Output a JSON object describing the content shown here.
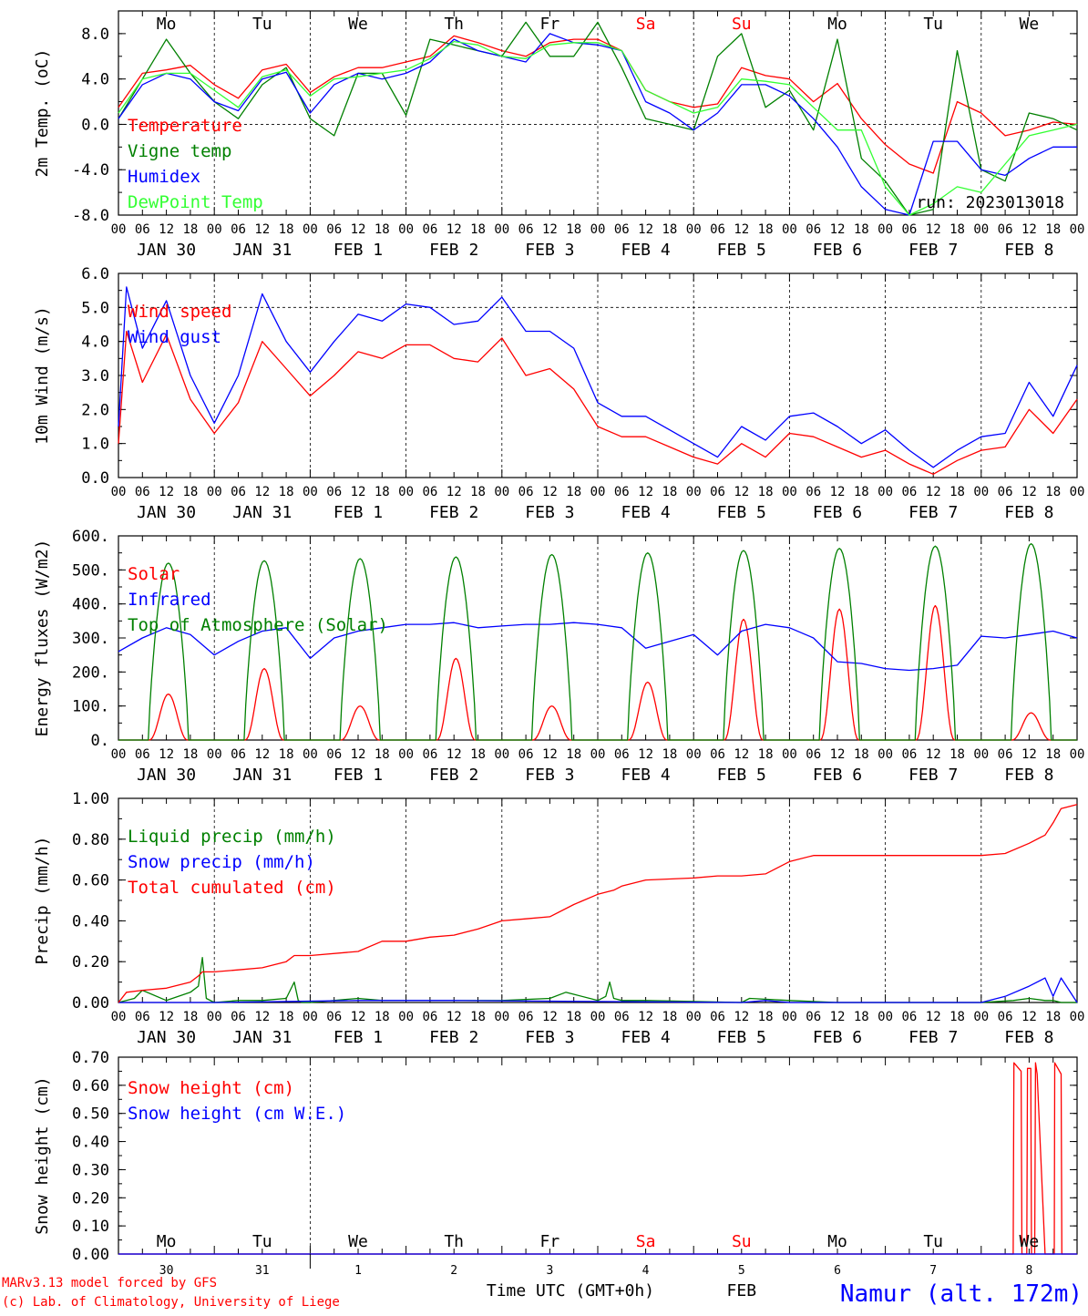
{
  "run_label": "run: 2023013018",
  "days_top": [
    {
      "label": "Mo",
      "color": "#000000"
    },
    {
      "label": "Tu",
      "color": "#000000"
    },
    {
      "label": "We",
      "color": "#000000"
    },
    {
      "label": "Th",
      "color": "#000000"
    },
    {
      "label": "Fr",
      "color": "#000000"
    },
    {
      "label": "Sa",
      "color": "#ff0000"
    },
    {
      "label": "Su",
      "color": "#ff0000"
    },
    {
      "label": "Mo",
      "color": "#000000"
    },
    {
      "label": "Tu",
      "color": "#000000"
    },
    {
      "label": "We",
      "color": "#000000"
    }
  ],
  "hour_ticks": [
    "00",
    "06",
    "12",
    "18"
  ],
  "hour_end": "00",
  "date_labels": [
    "JAN 30",
    "JAN 31",
    "FEB  1",
    "FEB  2",
    "FEB  3",
    "FEB  4",
    "FEB  5",
    "FEB  6",
    "FEB  7",
    "FEB  8"
  ],
  "bottom_day_numbers": [
    "30",
    "31",
    "1",
    "2",
    "3",
    "4",
    "5",
    "6",
    "7",
    "8"
  ],
  "xlabel": "Time UTC (GMT+0h)",
  "month_label": "FEB",
  "station_label": "Namur (alt. 172m)",
  "credit_line1": "MARv3.13 model forced by GFS",
  "credit_line2": "(c) Lab. of Climatology, University of Liege",
  "chart_data": [
    {
      "type": "line",
      "ylabel": "2m Temp. (oC)",
      "ylim": [
        -8,
        10
      ],
      "yticks": [
        "-8.0",
        "-4.0",
        "0.0",
        "4.0",
        "8.0"
      ],
      "ytick_values": [
        -8,
        -4,
        0,
        4,
        8
      ],
      "ref_line": 0,
      "x_unit": "hours since JAN 30 00 UTC",
      "series": [
        {
          "name": "Temperature",
          "color": "#ff0000",
          "x": [
            0,
            6,
            12,
            18,
            24,
            30,
            36,
            42,
            48,
            54,
            60,
            66,
            72,
            78,
            84,
            90,
            96,
            102,
            108,
            114,
            120,
            126,
            132,
            138,
            144,
            150,
            156,
            162,
            168,
            174,
            180,
            186,
            192,
            198,
            204,
            210,
            216,
            222,
            228,
            234,
            240
          ],
          "y": [
            1.5,
            4.5,
            4.8,
            5.2,
            3.5,
            2.3,
            4.8,
            5.3,
            2.8,
            4.2,
            5.0,
            5.0,
            5.5,
            6.0,
            7.8,
            7.2,
            6.5,
            6.0,
            7.2,
            7.5,
            7.5,
            6.5,
            3.0,
            2.0,
            1.5,
            1.8,
            5.0,
            4.3,
            4.0,
            2.0,
            3.6,
            0.5,
            -1.8,
            -3.5,
            -4.3,
            2.0,
            1.0,
            -1.0,
            -0.5,
            0.2,
            0.0
          ]
        },
        {
          "name": "Vigne temp",
          "color": "#008000",
          "x": [
            0,
            6,
            12,
            18,
            24,
            30,
            36,
            42,
            48,
            54,
            60,
            66,
            72,
            78,
            84,
            90,
            96,
            102,
            108,
            114,
            120,
            126,
            132,
            138,
            144,
            150,
            156,
            162,
            168,
            174,
            180,
            186,
            192,
            198,
            204,
            210,
            216,
            222,
            228,
            234,
            240
          ],
          "y": [
            0.5,
            4.0,
            7.5,
            4.5,
            2.0,
            0.5,
            3.5,
            5.0,
            0.5,
            -1.0,
            4.5,
            4.5,
            0.8,
            7.5,
            7.0,
            6.5,
            6.0,
            9.0,
            6.0,
            6.0,
            9.0,
            5.0,
            0.5,
            0.0,
            -0.5,
            6.0,
            8.0,
            1.5,
            3.0,
            -0.5,
            7.5,
            -3.0,
            -5.0,
            -8.0,
            -7.5,
            6.5,
            -4.0,
            -5.0,
            1.0,
            0.5,
            -0.5
          ]
        },
        {
          "name": "Humidex",
          "color": "#0000ff",
          "x": [
            0,
            6,
            12,
            18,
            24,
            30,
            36,
            42,
            48,
            54,
            60,
            66,
            72,
            78,
            84,
            90,
            96,
            102,
            108,
            114,
            120,
            126,
            132,
            138,
            144,
            150,
            156,
            162,
            168,
            174,
            180,
            186,
            192,
            198,
            204,
            210,
            216,
            222,
            228,
            234,
            240
          ],
          "y": [
            0.5,
            3.5,
            4.5,
            4.0,
            2.0,
            1.2,
            4.0,
            4.6,
            1.0,
            3.5,
            4.5,
            4.0,
            4.5,
            5.5,
            7.5,
            6.5,
            6.0,
            5.5,
            8.0,
            7.2,
            7.0,
            6.5,
            2.0,
            1.0,
            -0.5,
            1.0,
            3.5,
            3.5,
            2.5,
            0.5,
            -2.0,
            -5.5,
            -7.5,
            -8.0,
            -1.5,
            -1.5,
            -4.0,
            -4.5,
            -3.0,
            -2.0,
            -2.0
          ]
        },
        {
          "name": "DewPoint Temp",
          "color": "#33ff33",
          "x": [
            0,
            6,
            12,
            18,
            24,
            30,
            36,
            42,
            48,
            54,
            60,
            66,
            72,
            78,
            84,
            90,
            96,
            102,
            108,
            114,
            120,
            126,
            132,
            138,
            144,
            150,
            156,
            162,
            168,
            174,
            180,
            186,
            192,
            198,
            204,
            210,
            216,
            222,
            228,
            234,
            240
          ],
          "y": [
            1.0,
            4.0,
            4.5,
            4.5,
            3.0,
            1.5,
            4.2,
            4.8,
            2.5,
            4.0,
            4.2,
            4.5,
            4.8,
            5.8,
            7.3,
            7.0,
            6.0,
            5.8,
            7.0,
            7.2,
            7.2,
            6.5,
            3.0,
            2.0,
            1.0,
            1.5,
            4.0,
            3.8,
            3.5,
            1.5,
            -0.5,
            -0.5,
            -5.5,
            -8.0,
            -7.0,
            -5.5,
            -6.0,
            -3.5,
            -1.0,
            -0.5,
            0.0
          ]
        }
      ]
    },
    {
      "type": "line",
      "ylabel": "10m Wind (m/s)",
      "ylim": [
        0,
        6
      ],
      "yticks": [
        "0.0",
        "1.0",
        "2.0",
        "3.0",
        "4.0",
        "5.0",
        "6.0"
      ],
      "ytick_values": [
        0,
        1,
        2,
        3,
        4,
        5,
        6
      ],
      "ref_line": 5,
      "x_unit": "hours since JAN 30 00 UTC",
      "series": [
        {
          "name": "Wind speed",
          "color": "#ff0000",
          "x": [
            0,
            2,
            6,
            12,
            18,
            24,
            30,
            36,
            42,
            48,
            54,
            60,
            66,
            72,
            78,
            84,
            90,
            96,
            102,
            108,
            114,
            120,
            126,
            132,
            138,
            144,
            150,
            156,
            162,
            168,
            174,
            180,
            186,
            192,
            198,
            204,
            210,
            216,
            222,
            228,
            234,
            240
          ],
          "y": [
            1.0,
            4.3,
            2.8,
            4.2,
            2.3,
            1.3,
            2.2,
            4.0,
            3.2,
            2.4,
            3.0,
            3.7,
            3.5,
            3.9,
            3.9,
            3.5,
            3.4,
            4.1,
            3.0,
            3.2,
            2.6,
            1.5,
            1.2,
            1.2,
            0.9,
            0.6,
            0.4,
            1.0,
            0.6,
            1.3,
            1.2,
            0.9,
            0.6,
            0.8,
            0.4,
            0.1,
            0.5,
            0.8,
            0.9,
            2.0,
            1.3,
            2.3
          ]
        },
        {
          "name": "Wind gust",
          "color": "#0000ff",
          "x": [
            0,
            2,
            6,
            12,
            18,
            24,
            30,
            36,
            42,
            48,
            54,
            60,
            66,
            72,
            78,
            84,
            90,
            96,
            102,
            108,
            114,
            120,
            126,
            132,
            138,
            144,
            150,
            156,
            162,
            168,
            174,
            180,
            186,
            192,
            198,
            204,
            210,
            216,
            222,
            228,
            234,
            240
          ],
          "y": [
            1.5,
            5.6,
            3.8,
            5.2,
            3.0,
            1.6,
            3.0,
            5.4,
            4.0,
            3.1,
            4.0,
            4.8,
            4.6,
            5.1,
            5.0,
            4.5,
            4.6,
            5.3,
            4.3,
            4.3,
            3.8,
            2.2,
            1.8,
            1.8,
            1.4,
            1.0,
            0.6,
            1.5,
            1.1,
            1.8,
            1.9,
            1.5,
            1.0,
            1.4,
            0.8,
            0.3,
            0.8,
            1.2,
            1.3,
            2.8,
            1.8,
            3.3
          ]
        }
      ]
    },
    {
      "type": "line",
      "ylabel": "Energy fluxes (W/m2)",
      "ylim": [
        0,
        600
      ],
      "yticks": [
        "0.",
        "100.",
        "200.",
        "300.",
        "400.",
        "500.",
        "600."
      ],
      "ytick_values": [
        0,
        100,
        200,
        300,
        400,
        500,
        600
      ],
      "x_unit": "hours since JAN 30 00 UTC",
      "daily_peaks": {
        "solar_peak_hours": [
          12.5,
          36.5,
          60.5,
          84.5,
          108.5,
          132.5,
          156.5,
          180.5,
          204.5,
          228.5
        ],
        "solar_peak_values": [
          135,
          210,
          100,
          240,
          100,
          170,
          355,
          385,
          395,
          80
        ],
        "toa_peak_values": [
          520,
          527,
          533,
          538,
          545,
          550,
          557,
          563,
          570,
          577
        ],
        "day_length_hours": 9.5
      },
      "series": [
        {
          "name": "Solar",
          "color": "#ff0000",
          "from": "daily_peaks.solar_peak_values"
        },
        {
          "name": "Infrared",
          "color": "#0000ff",
          "x": [
            0,
            6,
            12,
            18,
            24,
            30,
            36,
            42,
            48,
            54,
            60,
            66,
            72,
            78,
            84,
            90,
            96,
            102,
            108,
            114,
            120,
            126,
            132,
            138,
            144,
            150,
            156,
            162,
            168,
            174,
            180,
            186,
            192,
            198,
            204,
            210,
            216,
            222,
            228,
            234,
            240
          ],
          "y": [
            260,
            300,
            330,
            310,
            250,
            290,
            320,
            330,
            240,
            300,
            320,
            330,
            340,
            340,
            345,
            330,
            335,
            340,
            340,
            345,
            340,
            330,
            270,
            290,
            310,
            250,
            320,
            340,
            330,
            300,
            230,
            225,
            210,
            205,
            210,
            220,
            305,
            300,
            310,
            320,
            300
          ]
        },
        {
          "name": "Top of Atmosphere (Solar)",
          "color": "#008000",
          "from": "daily_peaks.toa_peak_values"
        }
      ]
    },
    {
      "type": "line",
      "ylabel": "Precip (mm/h)",
      "ylim": [
        0,
        1
      ],
      "yticks": [
        "0.00",
        "0.20",
        "0.40",
        "0.60",
        "0.80",
        "1.00"
      ],
      "ytick_values": [
        0,
        0.2,
        0.4,
        0.6,
        0.8,
        1.0
      ],
      "x_unit": "hours since JAN 30 00 UTC",
      "series": [
        {
          "name": "Liquid precip (mm/h)",
          "color": "#008000",
          "x": [
            0,
            4,
            6,
            12,
            18,
            20,
            21,
            22,
            24,
            30,
            36,
            42,
            44,
            45,
            46,
            48,
            60,
            66,
            72,
            84,
            96,
            108,
            112,
            114,
            120,
            122,
            123,
            124,
            126,
            132,
            156,
            158,
            168,
            180,
            192,
            216,
            224,
            228,
            232,
            234,
            236,
            240
          ],
          "y": [
            0,
            0.02,
            0.06,
            0.01,
            0.05,
            0.08,
            0.22,
            0.02,
            0,
            0.01,
            0.01,
            0.02,
            0.1,
            0.01,
            0,
            0,
            0.02,
            0.01,
            0.01,
            0.01,
            0.01,
            0.02,
            0.05,
            0.04,
            0.01,
            0.03,
            0.1,
            0.02,
            0.01,
            0.01,
            0,
            0.02,
            0.01,
            0,
            0,
            0,
            0.01,
            0.02,
            0.01,
            0.01,
            0,
            0
          ]
        },
        {
          "name": "Snow precip (mm/h)",
          "color": "#0000ff",
          "x": [
            0,
            24,
            60,
            84,
            156,
            162,
            168,
            216,
            222,
            228,
            232,
            234,
            236,
            240
          ],
          "y": [
            0,
            0,
            0.01,
            0.01,
            0,
            0.01,
            0,
            0,
            0.03,
            0.08,
            0.12,
            0.03,
            0.12,
            0
          ]
        },
        {
          "name": "Total cumulated (cm)",
          "color": "#ff0000",
          "x": [
            0,
            2,
            6,
            12,
            18,
            20,
            21,
            24,
            30,
            36,
            42,
            44,
            48,
            60,
            66,
            72,
            78,
            84,
            90,
            96,
            102,
            108,
            114,
            120,
            124,
            126,
            132,
            144,
            150,
            156,
            162,
            168,
            174,
            192,
            216,
            222,
            228,
            232,
            234,
            236,
            240
          ],
          "y": [
            0,
            0.05,
            0.06,
            0.07,
            0.1,
            0.13,
            0.15,
            0.15,
            0.16,
            0.17,
            0.2,
            0.23,
            0.23,
            0.25,
            0.3,
            0.3,
            0.32,
            0.33,
            0.36,
            0.4,
            0.41,
            0.42,
            0.48,
            0.53,
            0.55,
            0.57,
            0.6,
            0.61,
            0.62,
            0.62,
            0.63,
            0.69,
            0.72,
            0.72,
            0.72,
            0.73,
            0.78,
            0.82,
            0.88,
            0.95,
            0.97
          ]
        }
      ]
    },
    {
      "type": "line",
      "ylabel": "Snow height (cm)",
      "ylim": [
        0,
        0.7
      ],
      "yticks": [
        "0.00",
        "0.10",
        "0.20",
        "0.30",
        "0.40",
        "0.50",
        "0.60",
        "0.70"
      ],
      "ytick_values": [
        0,
        0.1,
        0.2,
        0.3,
        0.4,
        0.5,
        0.6,
        0.7
      ],
      "x_unit": "hours since JAN 30 00 UTC",
      "series": [
        {
          "name": "Snow height (cm)",
          "color": "#ff0000",
          "x": [
            0,
            224,
            224.2,
            226,
            226.2,
            227.4,
            227.6,
            228.4,
            228.6,
            229.4,
            229.6,
            230,
            232,
            232.4,
            232.6,
            233,
            234,
            234.3,
            234.4,
            236,
            236.2,
            240
          ],
          "y": [
            0,
            0,
            0.68,
            0.65,
            0,
            0,
            0.66,
            0.66,
            0,
            0,
            0.68,
            0.64,
            0,
            0,
            0,
            0,
            0,
            0,
            0.68,
            0.64,
            0,
            0
          ]
        },
        {
          "name": "Snow height (cm W.E.)",
          "color": "#0000ff",
          "x": [
            0,
            240
          ],
          "y": [
            0,
            0
          ]
        }
      ]
    }
  ]
}
